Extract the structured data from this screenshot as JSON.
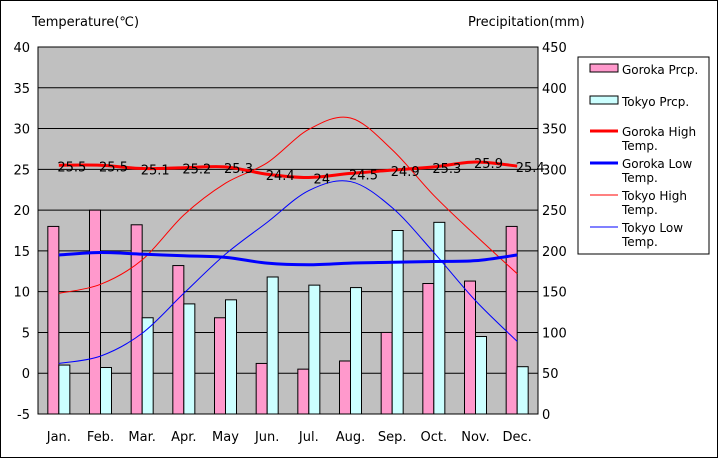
{
  "chart_data": {
    "type": "bar+line",
    "title": "",
    "left_axis_title": "Temperature(℃)",
    "right_axis_title": "Precipitation(mm)",
    "categories": [
      "Jan.",
      "Feb.",
      "Mar.",
      "Apr.",
      "May",
      "Jun.",
      "Jul.",
      "Aug.",
      "Sep.",
      "Oct.",
      "Nov.",
      "Dec."
    ],
    "ylim_left": [
      -5,
      40
    ],
    "yticks_left": [
      -5,
      0,
      5,
      10,
      15,
      20,
      25,
      30,
      35,
      40
    ],
    "ylim_right": [
      0,
      450
    ],
    "yticks_right": [
      0,
      50,
      100,
      150,
      200,
      250,
      300,
      350,
      400,
      450
    ],
    "grid": "horizontal",
    "bars": [
      {
        "name": "Goroka Prcp.",
        "color": "#ff99cc",
        "values": [
          230,
          250,
          232,
          182,
          118,
          62,
          55,
          65,
          100,
          160,
          163,
          230
        ]
      },
      {
        "name": "Tokyo Prcp.",
        "color": "#ccffff",
        "values": [
          60,
          57,
          118,
          135,
          140,
          168,
          158,
          155,
          225,
          235,
          95,
          58
        ]
      }
    ],
    "lines": [
      {
        "name": "Goroka High Temp.",
        "color": "#ff0000",
        "width": 3,
        "labeled": true,
        "values": [
          25.5,
          25.5,
          25.1,
          25.2,
          25.3,
          24.4,
          24.0,
          24.5,
          24.9,
          25.3,
          25.9,
          25.4
        ]
      },
      {
        "name": "Goroka Low Temp.",
        "color": "#0000ff",
        "width": 3,
        "labeled": false,
        "values": [
          14.5,
          14.8,
          14.6,
          14.4,
          14.2,
          13.5,
          13.3,
          13.5,
          13.6,
          13.7,
          13.8,
          14.5
        ]
      },
      {
        "name": "Tokyo High Temp.",
        "color": "#ff0000",
        "width": 1,
        "labeled": false,
        "values": [
          9.8,
          10.9,
          13.9,
          19.4,
          23.3,
          25.8,
          29.9,
          31.3,
          27.4,
          21.8,
          16.9,
          12.2
        ]
      },
      {
        "name": "Tokyo Low Temp.",
        "color": "#0000ff",
        "width": 1,
        "labeled": false,
        "values": [
          1.2,
          2.1,
          4.9,
          9.8,
          14.6,
          18.5,
          22.4,
          23.5,
          20.3,
          14.8,
          8.9,
          3.9
        ]
      }
    ],
    "data_labels": [
      "25.5",
      "25.5",
      "25.1",
      "25.2",
      "25.3",
      "24.4",
      "24",
      "24.5",
      "24.9",
      "25.3",
      "25.9",
      "25.4"
    ],
    "legend": {
      "position": "right",
      "entries": [
        "Goroka Prcp.",
        "Tokyo Prcp.",
        "Goroka High Temp.",
        "Goroka Low Temp.",
        "Tokyo High Temp.",
        "Tokyo Low Temp."
      ]
    }
  }
}
